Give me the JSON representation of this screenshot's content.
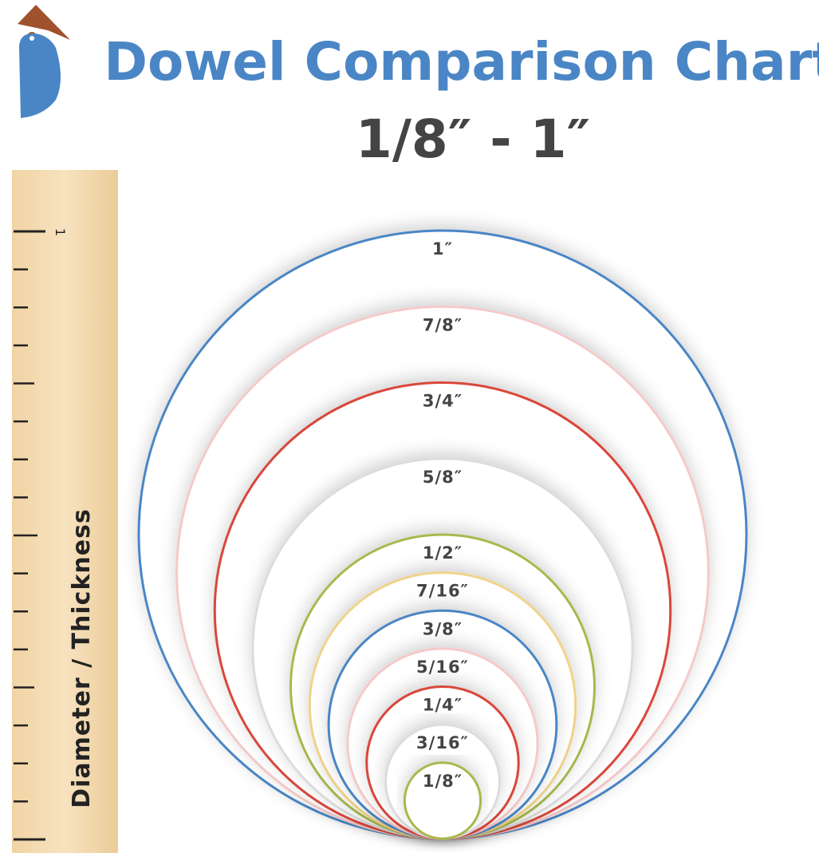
{
  "header": {
    "title": "Dowel Comparison Chart",
    "subtitle": "1/8″ - 1″"
  },
  "ruler": {
    "label": "Diameter / Thickness",
    "tick_label": "1"
  },
  "circles": [
    {
      "label": "1″",
      "diameter": 1,
      "color": "#4a86c5"
    },
    {
      "label": "7/8″",
      "diameter": 0.875,
      "color": "#f5c9c9"
    },
    {
      "label": "3/4″",
      "diameter": 0.75,
      "color": "#d9463a"
    },
    {
      "label": "5/8″",
      "diameter": 0.625,
      "color": "#dcdcdc"
    },
    {
      "label": "1/2″",
      "diameter": 0.5,
      "color": "#a9b84c"
    },
    {
      "label": "7/16″",
      "diameter": 0.4375,
      "color": "#f0d38a"
    },
    {
      "label": "3/8″",
      "diameter": 0.375,
      "color": "#4a86c5"
    },
    {
      "label": "5/16″",
      "diameter": 0.3125,
      "color": "#f5c9c9"
    },
    {
      "label": "1/4″",
      "diameter": 0.25,
      "color": "#d9463a"
    },
    {
      "label": "3/16″",
      "diameter": 0.1875,
      "color": "#dcdcdc"
    },
    {
      "label": "1/8″",
      "diameter": 0.125,
      "color": "#a9b84c"
    }
  ]
}
